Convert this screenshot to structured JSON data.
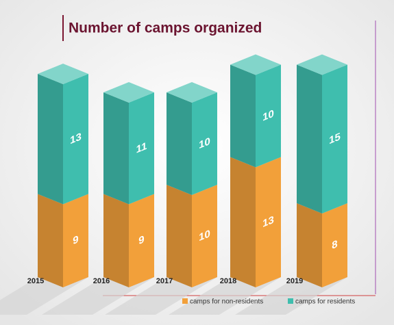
{
  "chart_data": {
    "type": "bar",
    "stacked": true,
    "title": "Number of camps organized",
    "categories": [
      "2015",
      "2016",
      "2017",
      "2018",
      "2019"
    ],
    "series": [
      {
        "name": "camps for non-residents",
        "color": "#f2a03a",
        "values": [
          9,
          9,
          10,
          13,
          8
        ]
      },
      {
        "name": "camps for residents",
        "color": "#3fbeae",
        "values": [
          13,
          11,
          10,
          10,
          15
        ]
      }
    ]
  }
}
